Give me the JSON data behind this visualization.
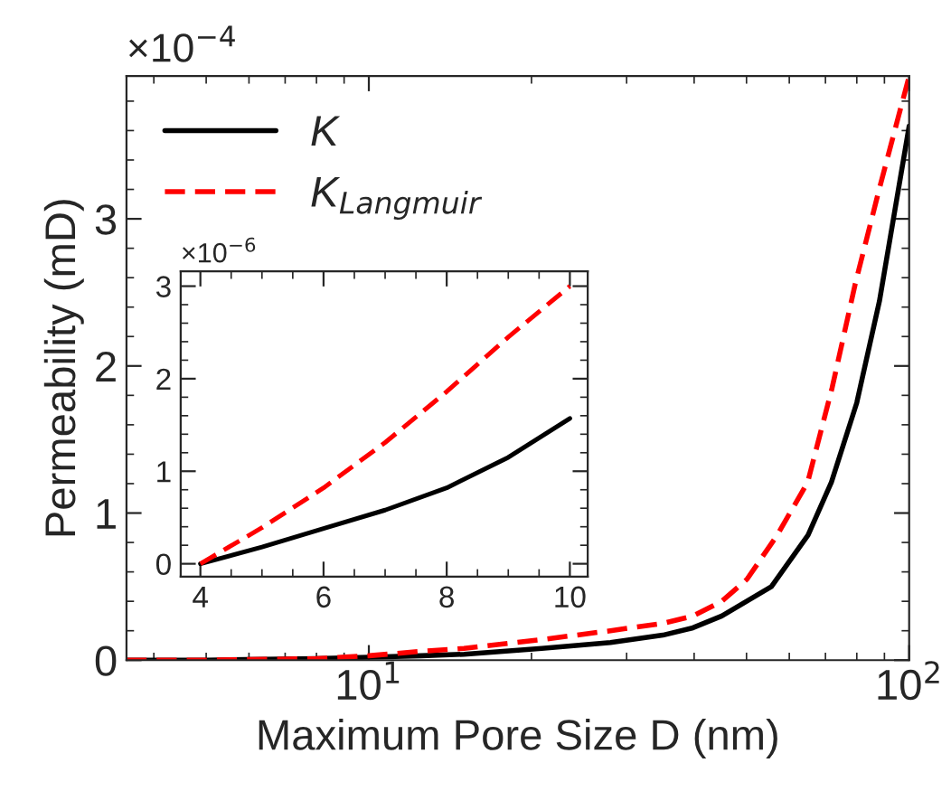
{
  "chart_data": [
    {
      "type": "line",
      "xlabel": "Maximum Pore Size D (nm)",
      "ylabel": "Permeability (mD)",
      "log": "x",
      "xlim": [
        3.56,
        100
      ],
      "xticks": [
        {
          "value": 10,
          "label": "10$^{1}$"
        },
        {
          "value": 100,
          "label": "10$^{2}$"
        }
      ],
      "ylim": [
        0,
        3.97
      ],
      "yticks": [
        0,
        1,
        2,
        3
      ],
      "grid": false,
      "legend": "top left",
      "marker": "none",
      "annotations": [
        "×10$^{−4}$"
      ],
      "series": [
        {
          "name": "K",
          "color": "#000000",
          "line_style": "solid",
          "x": [
            3.56,
            5,
            8,
            10,
            12.5,
            15,
            20.9,
            28,
            35,
            39.8,
            45,
            55.6,
            65,
            71.8,
            80,
            88.1,
            100
          ],
          "values": [
            0,
            0,
            0.01,
            0.02,
            0.03,
            0.04,
            0.08,
            0.12,
            0.17,
            0.22,
            0.3,
            0.5,
            0.85,
            1.21,
            1.75,
            2.44,
            3.63
          ]
        },
        {
          "name": "K$_{Langmuir}$",
          "color": "#ff0000",
          "line_style": "dashed",
          "x": [
            3.56,
            5,
            8,
            10,
            12.5,
            15,
            20.9,
            28,
            35,
            39.8,
            45,
            50.1,
            57,
            64.9,
            72,
            79.5,
            88,
            100
          ],
          "values": [
            0,
            0,
            0.01,
            0.03,
            0.06,
            0.08,
            0.14,
            0.2,
            0.25,
            0.3,
            0.4,
            0.55,
            0.85,
            1.21,
            1.85,
            2.56,
            3.2,
            3.97
          ]
        }
      ]
    },
    {
      "type": "line",
      "xlim": [
        3.68,
        10.29
      ],
      "xticks": [
        4,
        6,
        8,
        10
      ],
      "ylim": [
        -0.14,
        3.16
      ],
      "yticks": [
        0,
        1,
        2,
        3
      ],
      "grid": false,
      "marker": "none",
      "annotations": [
        "×10$^{−6}$"
      ],
      "series": [
        {
          "color": "#000000",
          "line_style": "solid",
          "x": [
            4,
            5,
            6,
            7,
            8,
            9,
            10
          ],
          "values": [
            0,
            0.18,
            0.38,
            0.58,
            0.82,
            1.15,
            1.57
          ]
        },
        {
          "color": "#ff0000",
          "line_style": "dashed",
          "x": [
            4,
            5,
            6,
            7,
            8,
            9,
            10
          ],
          "values": [
            0,
            0.39,
            0.82,
            1.31,
            1.86,
            2.45,
            3.0
          ]
        }
      ]
    }
  ]
}
